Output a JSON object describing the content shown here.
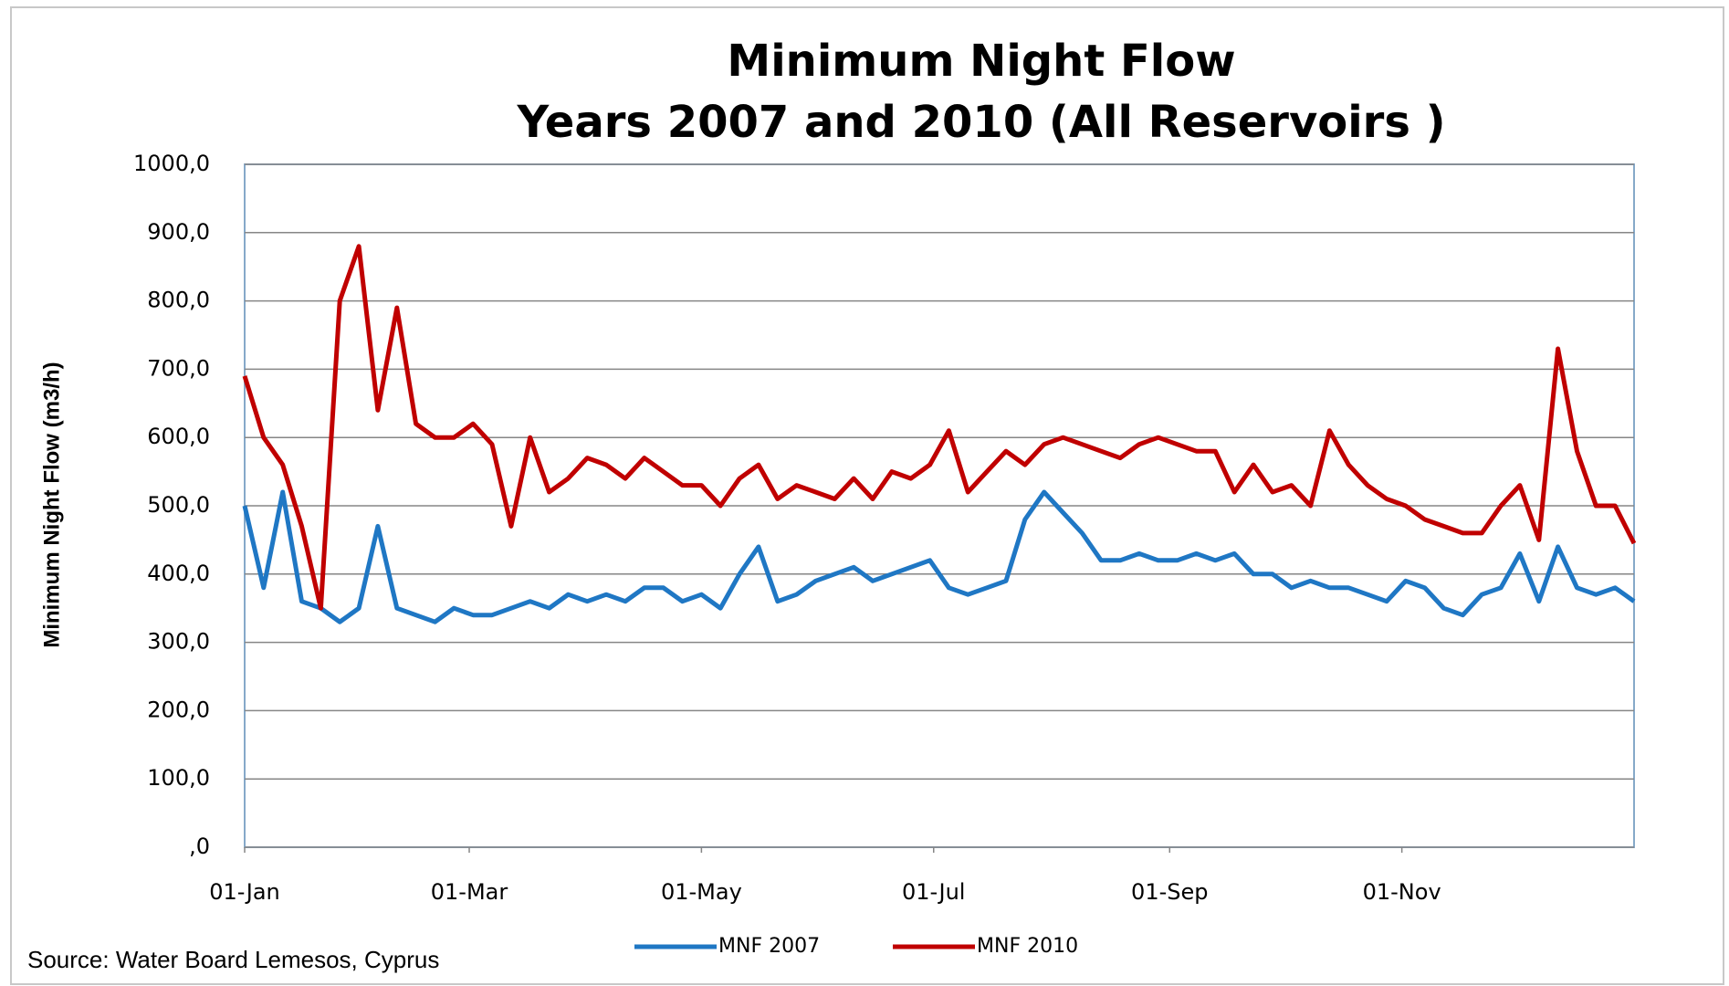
{
  "chart_data": {
    "type": "line",
    "title": "Minimum Night Flow",
    "subtitle": "Years 2007 and 2010 (All Reservoirs )",
    "y_label": "Minimum Night Flow  (m3/h)",
    "source": "Source: Water Board Lemesos, Cyprus",
    "x": [
      0,
      5,
      10,
      15,
      20,
      25,
      30,
      35,
      40,
      45,
      50,
      55,
      60,
      65,
      70,
      75,
      80,
      85,
      90,
      95,
      100,
      105,
      110,
      115,
      120,
      125,
      130,
      135,
      140,
      145,
      150,
      155,
      160,
      165,
      170,
      175,
      180,
      185,
      190,
      195,
      200,
      205,
      210,
      215,
      220,
      225,
      230,
      235,
      240,
      245,
      250,
      255,
      260,
      265,
      270,
      275,
      280,
      285,
      290,
      295,
      300,
      305,
      310,
      315,
      320,
      325,
      330,
      335,
      340,
      345,
      350,
      355,
      360,
      365
    ],
    "xlim": [
      0,
      365
    ],
    "xticks": [
      {
        "value": 0,
        "label": "01-Jan"
      },
      {
        "value": 59,
        "label": "01-Mar"
      },
      {
        "value": 120,
        "label": "01-May"
      },
      {
        "value": 181,
        "label": "01-Jul"
      },
      {
        "value": 243,
        "label": "01-Sep"
      },
      {
        "value": 304,
        "label": "01-Nov"
      }
    ],
    "ylim": [
      0,
      1000
    ],
    "yticks": [
      {
        "value": 0,
        "label": ",0"
      },
      {
        "value": 100,
        "label": "100,0"
      },
      {
        "value": 200,
        "label": "200,0"
      },
      {
        "value": 300,
        "label": "300,0"
      },
      {
        "value": 400,
        "label": "400,0"
      },
      {
        "value": 500,
        "label": "500,0"
      },
      {
        "value": 600,
        "label": "600,0"
      },
      {
        "value": 700,
        "label": "700,0"
      },
      {
        "value": 800,
        "label": "800,0"
      },
      {
        "value": 900,
        "label": "900,0"
      },
      {
        "value": 1000,
        "label": "1000,0"
      }
    ],
    "grid": true,
    "legend": "bottom",
    "series": [
      {
        "name": "MNF 2007",
        "color": "#1f77c4",
        "values": [
          500,
          380,
          520,
          360,
          350,
          330,
          350,
          470,
          350,
          340,
          330,
          350,
          340,
          340,
          350,
          360,
          350,
          370,
          360,
          370,
          360,
          380,
          380,
          360,
          370,
          350,
          400,
          440,
          360,
          370,
          390,
          400,
          410,
          390,
          400,
          410,
          420,
          380,
          370,
          380,
          390,
          480,
          520,
          490,
          460,
          420,
          420,
          430,
          420,
          420,
          430,
          420,
          430,
          400,
          400,
          380,
          390,
          380,
          380,
          370,
          360,
          390,
          380,
          350,
          340,
          370,
          380,
          430,
          360,
          440,
          380,
          370,
          380,
          360
        ]
      },
      {
        "name": "MNF 2010",
        "color": "#c00000",
        "values": [
          690,
          600,
          560,
          470,
          350,
          800,
          880,
          640,
          790,
          620,
          600,
          600,
          620,
          590,
          470,
          600,
          520,
          540,
          570,
          560,
          540,
          570,
          550,
          530,
          530,
          500,
          540,
          560,
          510,
          530,
          520,
          510,
          540,
          510,
          550,
          540,
          560,
          610,
          520,
          550,
          580,
          560,
          590,
          600,
          590,
          580,
          570,
          590,
          600,
          590,
          580,
          580,
          520,
          560,
          520,
          530,
          500,
          610,
          560,
          530,
          510,
          500,
          480,
          470,
          460,
          460,
          500,
          530,
          450,
          730,
          580,
          500,
          500,
          445
        ]
      }
    ]
  }
}
